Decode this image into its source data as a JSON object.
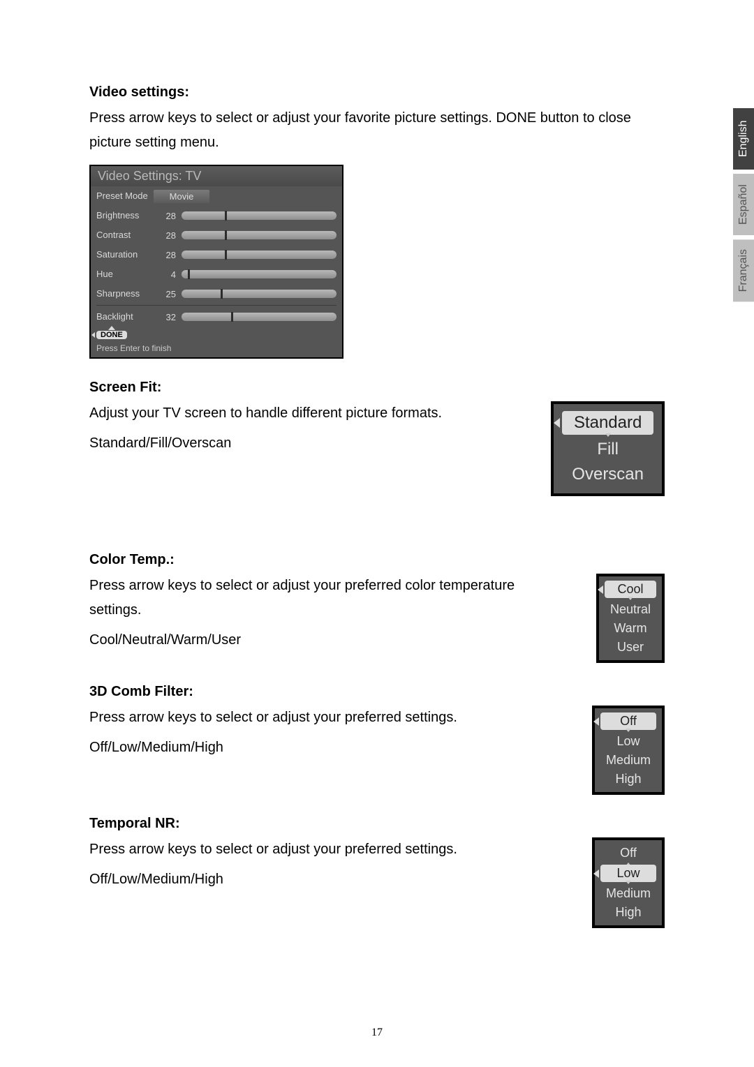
{
  "page_number": "17",
  "lang_tabs": {
    "english": "English",
    "spanish": "Español",
    "french": "Français"
  },
  "video_settings": {
    "title": "Video settings:",
    "desc": "Press arrow keys to select or adjust your favorite picture settings. DONE button to close picture setting menu.",
    "panel_title": "Video Settings: TV",
    "preset_label": "Preset Mode",
    "preset_value": "Movie",
    "sliders": [
      {
        "label": "Brightness",
        "value": "28",
        "pct": 28
      },
      {
        "label": "Contrast",
        "value": "28",
        "pct": 28
      },
      {
        "label": "Saturation",
        "value": "28",
        "pct": 28
      },
      {
        "label": "Hue",
        "value": "4",
        "pct": 4
      },
      {
        "label": "Sharpness",
        "value": "25",
        "pct": 25
      }
    ],
    "backlight": {
      "label": "Backlight",
      "value": "32",
      "pct": 32
    },
    "done_label": "DONE",
    "enter_text": "Press Enter to finish"
  },
  "screen_fit": {
    "title": "Screen Fit:",
    "desc": "Adjust your TV screen to handle different picture formats.",
    "options_text": "Standard/Fill/Overscan",
    "menu": [
      "Standard",
      "Fill",
      "Overscan"
    ],
    "selected_index": 0
  },
  "color_temp": {
    "title": "Color Temp.:",
    "desc": "Press arrow keys to select or adjust your preferred color temperature settings.",
    "options_text": "Cool/Neutral/Warm/User",
    "menu": [
      "Cool",
      "Neutral",
      "Warm",
      "User"
    ],
    "selected_index": 0
  },
  "comb_filter": {
    "title": "3D Comb Filter:",
    "desc": "Press arrow keys to select or adjust your preferred settings.",
    "options_text": "Off/Low/Medium/High",
    "menu": [
      "Off",
      "Low",
      "Medium",
      "High"
    ],
    "selected_index": 0
  },
  "temporal_nr": {
    "title": "Temporal NR:",
    "desc": "Press arrow keys to select or adjust your preferred settings.",
    "options_text": "Off/Low/Medium/High",
    "menu": [
      "Off",
      "Low",
      "Medium",
      "High"
    ],
    "selected_index": 1
  },
  "colors": {
    "panel_bg": "#555555",
    "slider_bg_top": "#b8b8b8",
    "slider_bg_bot": "#8f8f8f",
    "selected_bg": "#dddddd",
    "tab_active": "#414141",
    "tab_inactive": "#bfbfbf"
  }
}
